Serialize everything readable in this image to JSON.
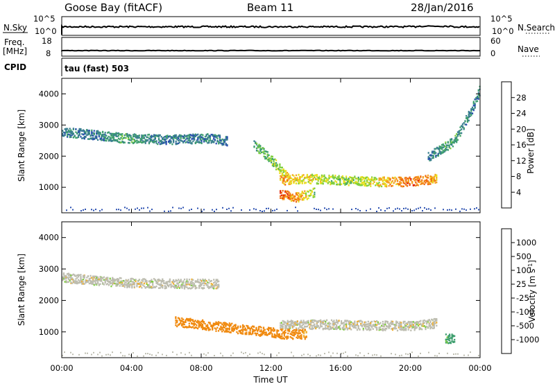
{
  "header": {
    "station": "Goose Bay (fitACF)",
    "beam": "Beam 11",
    "date": "28/Jan/2016"
  },
  "noise_panel": {
    "left_label": "N.Sky",
    "right_label": "N.Search",
    "left_ticks": [
      "10^5",
      "10^0"
    ],
    "right_ticks": [
      "10^5",
      "10^0"
    ]
  },
  "freq_panel": {
    "left_label_1": "Freq.",
    "left_label_2": "[MHz]",
    "right_label": "Nave",
    "left_ticks": [
      "18",
      "8"
    ],
    "right_ticks": [
      "60",
      "0"
    ]
  },
  "cpid_panel": {
    "label": "CPID",
    "text": "tau (fast) 503"
  },
  "colors": {
    "power_scale": [
      "#1010e0",
      "#2a4fb0",
      "#3a7f8f",
      "#3f9f6f",
      "#7fcf3f",
      "#e8e020",
      "#f5a020",
      "#f06a10",
      "#e02010"
    ],
    "velocity_scale": [
      "#e01010",
      "#f04810",
      "#f08a10",
      "#f0b030",
      "#bdbdb0",
      "#bdbdb0",
      "#7fcf3f",
      "#3f9f6f",
      "#2a6fb0",
      "#1a3fc0"
    ]
  },
  "chart_data": [
    {
      "type": "heatmap",
      "title": "Power",
      "ylabel": "Slant Range [km]",
      "xlabel": "Time UT",
      "x_ticks": [
        "00:00",
        "04:00",
        "08:00",
        "12:00",
        "16:00",
        "20:00",
        "00:00"
      ],
      "y_ticks": [
        1000,
        2000,
        3000,
        4000
      ],
      "ylim": [
        180,
        4500
      ],
      "xlim_hours": [
        0,
        24
      ],
      "colorbar": {
        "label": "Power [dB]",
        "ticks": [
          "4",
          "8",
          "12",
          "16",
          "20",
          "24",
          "28"
        ]
      },
      "features": [
        {
          "name": "morning band",
          "t": [
            0.0,
            2.0,
            3.5,
            6.0,
            8.5,
            9.5
          ],
          "range": [
            2800,
            2700,
            2600,
            2550,
            2600,
            2500
          ],
          "power_db": [
            8,
            8,
            12,
            8,
            8,
            8
          ]
        },
        {
          "name": "evening descent",
          "t": [
            11.0,
            12.0,
            13.0
          ],
          "range": [
            2400,
            1900,
            1300
          ],
          "power_db": [
            12,
            16,
            20
          ]
        },
        {
          "name": "main echo",
          "t": [
            12.5,
            14.0,
            16.0,
            18.0,
            20.0,
            21.5
          ],
          "range": [
            1250,
            1300,
            1250,
            1200,
            1200,
            1300
          ],
          "power_db": [
            24,
            20,
            16,
            20,
            28,
            24
          ]
        },
        {
          "name": "low patch",
          "t": [
            12.5,
            13.5,
            14.5
          ],
          "range": [
            800,
            700,
            850
          ],
          "power_db": [
            28,
            24,
            16
          ]
        },
        {
          "name": "late rise",
          "t": [
            21.0,
            22.5,
            23.5,
            24.0
          ],
          "range": [
            2000,
            2500,
            3500,
            4200
          ],
          "power_db": [
            8,
            12,
            8,
            8
          ]
        }
      ]
    },
    {
      "type": "heatmap",
      "title": "Velocity",
      "ylabel": "Slant Range [km]",
      "xlabel": "Time UT",
      "x_ticks": [
        "00:00",
        "04:00",
        "08:00",
        "12:00",
        "16:00",
        "20:00",
        "00:00"
      ],
      "y_ticks": [
        1000,
        2000,
        3000,
        4000
      ],
      "ylim": [
        180,
        4500
      ],
      "xlim_hours": [
        0,
        24
      ],
      "colorbar": {
        "label": "Velocity [m s^-1]",
        "ticks": [
          "1000",
          "500",
          "100",
          "25",
          "-25",
          "-100",
          "-500",
          "-1000"
        ]
      },
      "features": [
        {
          "name": "morning band",
          "t": [
            0.0,
            3.0,
            6.0,
            9.0
          ],
          "range": [
            2750,
            2600,
            2550,
            2550
          ],
          "velocity": [
            0,
            0,
            0,
            0
          ]
        },
        {
          "name": "main echo",
          "t": [
            12.5,
            16.0,
            20.0,
            21.5
          ],
          "range": [
            1250,
            1250,
            1200,
            1300
          ],
          "velocity": [
            0,
            0,
            0,
            0
          ]
        },
        {
          "name": "receding patch",
          "t": [
            6.5,
            12.8,
            14.0
          ],
          "range": [
            1350,
            950,
            950
          ],
          "velocity": [
            -200,
            -200,
            -100
          ]
        },
        {
          "name": "approaching patch",
          "t": [
            22.0,
            22.5
          ],
          "range": [
            800,
            800
          ],
          "velocity": [
            100,
            150
          ]
        }
      ]
    }
  ]
}
